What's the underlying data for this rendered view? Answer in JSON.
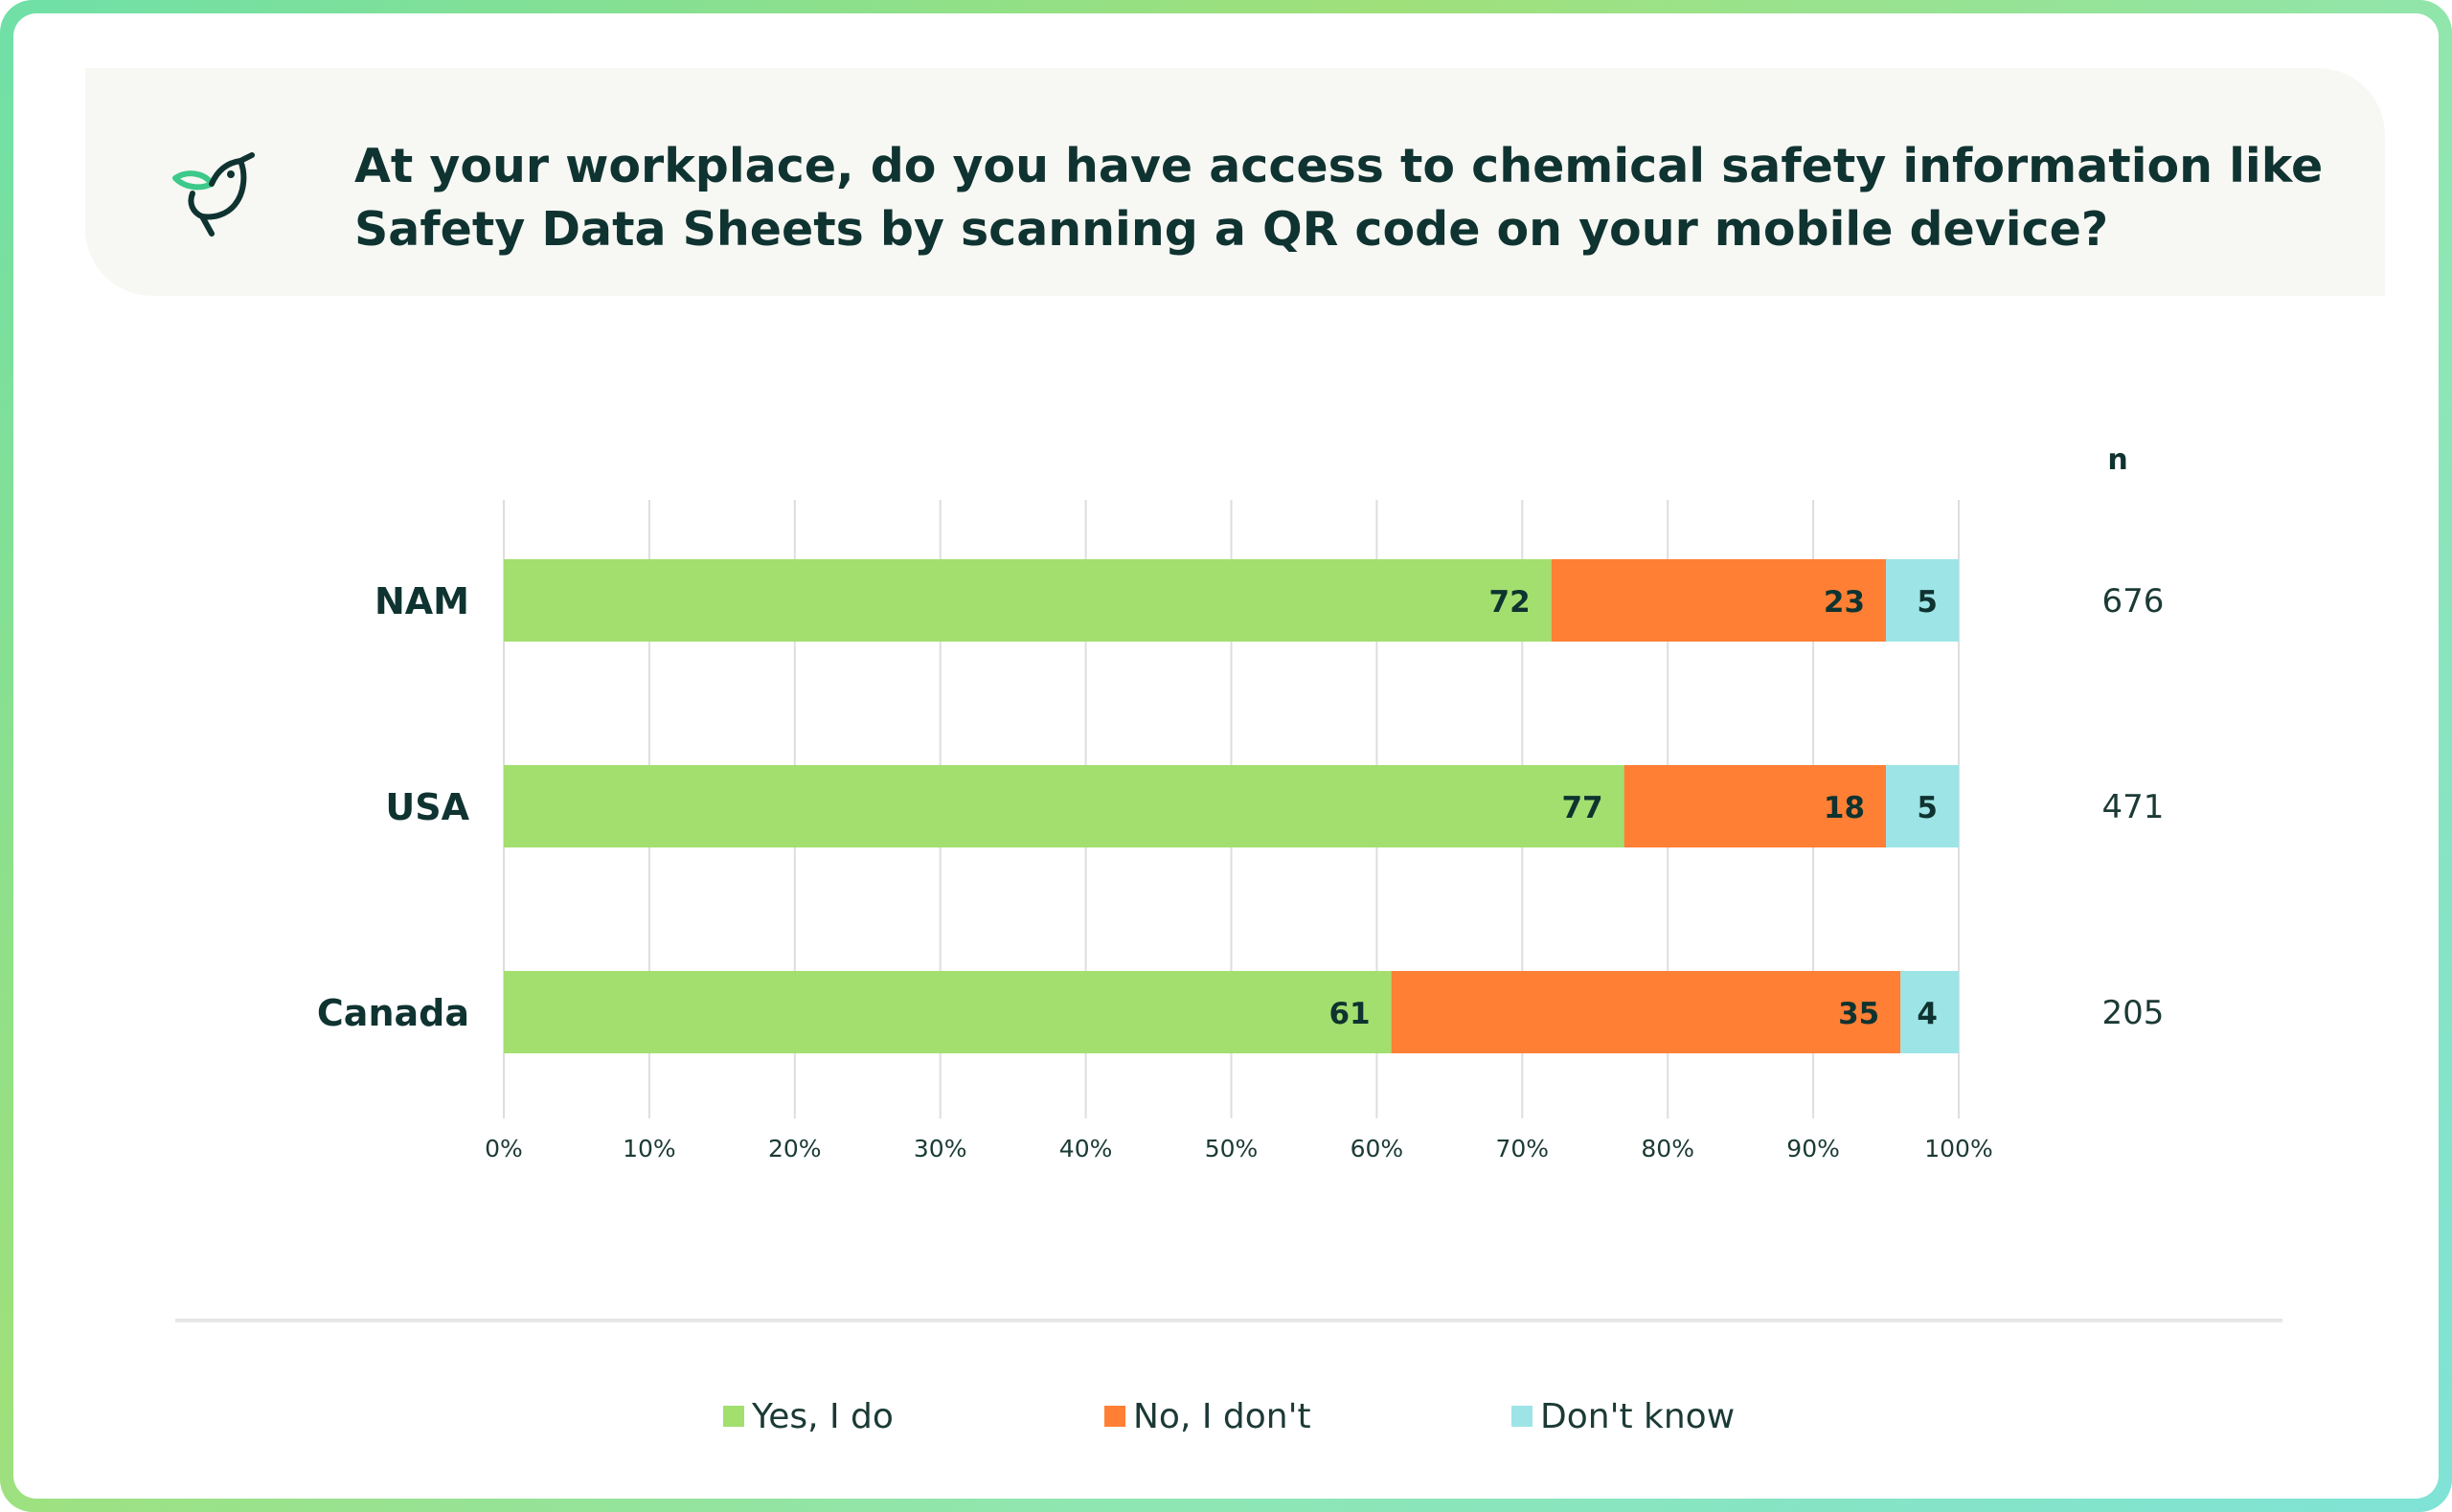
{
  "header": {
    "title": "At your workplace, do you have access to chemical safety information like Safety Data Sheets by scanning a QR code on your mobile device?",
    "icon": "bird-leaf-icon"
  },
  "colors": {
    "yes": "#a2df6f",
    "no": "#ff7f35",
    "dont_know": "#9de4e6",
    "text_dark": "#0f3330",
    "grid": "#dedede"
  },
  "n_header": "n",
  "chart_data": {
    "type": "bar",
    "orientation": "horizontal",
    "stacked": true,
    "categories": [
      "NAM",
      "USA",
      "Canada"
    ],
    "series": [
      {
        "name": "Yes, I do",
        "values": [
          72,
          77,
          61
        ]
      },
      {
        "name": "No, I don't",
        "values": [
          23,
          18,
          35
        ]
      },
      {
        "name": "Don't know",
        "values": [
          5,
          5,
          4
        ]
      }
    ],
    "n_values": [
      "676",
      "471",
      "205"
    ],
    "xlim": [
      0,
      100
    ],
    "xticks": [
      "0%",
      "10%",
      "20%",
      "30%",
      "40%",
      "50%",
      "60%",
      "70%",
      "80%",
      "90%",
      "100%"
    ],
    "grid": true,
    "legend_position": "bottom"
  }
}
